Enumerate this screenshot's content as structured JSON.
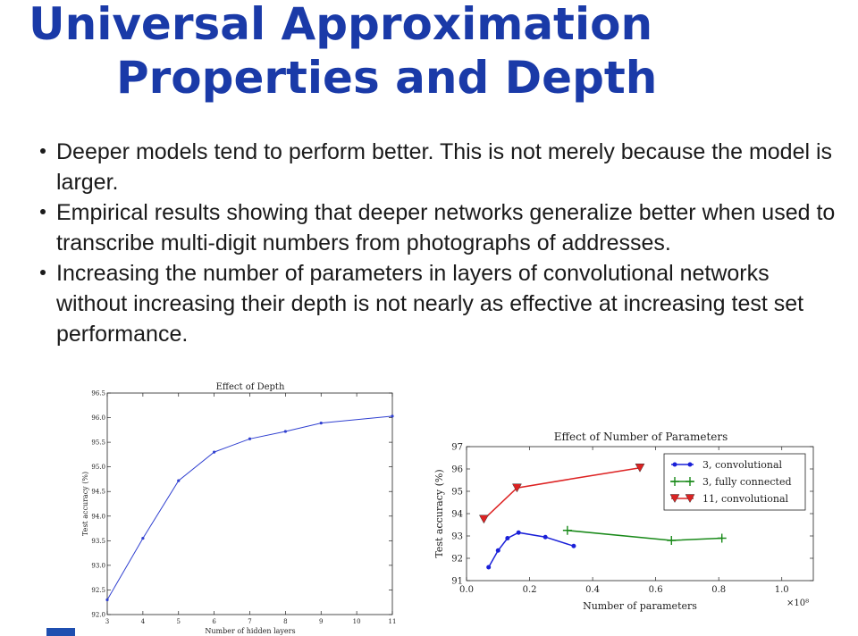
{
  "slide": {
    "title_line1": "Universal Approximation",
    "title_line2": "Properties and Depth",
    "bullets": [
      "Deeper models tend to perform better. This is not merely because the model is larger.",
      "Empirical results showing that deeper networks generalize better when used to transcribe multi-digit numbers from photographs of addresses.",
      "Increasing the number of parameters in layers of convolutional networks without increasing their depth is not nearly as effective at increasing test set performance."
    ]
  },
  "chart_data": [
    {
      "type": "line",
      "title": "Effect of Depth",
      "xlabel": "Number of hidden layers",
      "ylabel": "Test accuracy (%)",
      "xlim": [
        3,
        11
      ],
      "ylim": [
        92.0,
        96.5
      ],
      "xticks": [
        3,
        4,
        5,
        6,
        7,
        8,
        9,
        10,
        11
      ],
      "yticks": [
        "92.0",
        "92.5",
        "93.0",
        "93.5",
        "94.0",
        "94.5",
        "95.0",
        "95.5",
        "96.0",
        "96.5"
      ],
      "grid": false,
      "color": "#3040d0",
      "x": [
        3,
        4,
        5,
        6,
        7,
        8,
        9,
        11
      ],
      "y": [
        92.3,
        93.55,
        94.72,
        95.3,
        95.57,
        95.72,
        95.89,
        96.03
      ]
    },
    {
      "type": "line",
      "title": "Effect of Number of Parameters",
      "xlabel": "Number of parameters",
      "ylabel": "Test accuracy (%)",
      "x_multiplier_label": "×10⁸",
      "xlim": [
        0.0,
        1.1
      ],
      "ylim": [
        91,
        97
      ],
      "xticks": [
        "0.0",
        "0.2",
        "0.4",
        "0.6",
        "0.8",
        "1.0"
      ],
      "yticks": [
        "91",
        "92",
        "93",
        "94",
        "95",
        "96",
        "97"
      ],
      "grid": false,
      "legend": "top-right",
      "series": [
        {
          "name": "3, convolutional",
          "color": "#1a20d8",
          "marker": "dot",
          "x": [
            0.07,
            0.1,
            0.13,
            0.165,
            0.25,
            0.34
          ],
          "y": [
            91.6,
            92.35,
            92.9,
            93.15,
            92.95,
            92.55
          ],
          "marked": [
            0,
            1,
            2,
            3,
            4,
            5
          ]
        },
        {
          "name": "3, fully connected",
          "color": "#1a8a1a",
          "marker": "plus",
          "x": [
            0.32,
            0.65,
            0.81
          ],
          "y": [
            93.25,
            92.8,
            92.9
          ],
          "marked": [
            0,
            1,
            2
          ]
        },
        {
          "name": "11, convolutional",
          "color": "#dd2222",
          "marker": "triangle",
          "x": [
            0.055,
            0.16,
            0.33,
            0.55
          ],
          "y": [
            93.75,
            95.15,
            95.55,
            96.05
          ],
          "marked": [
            0,
            1,
            3
          ]
        }
      ]
    }
  ]
}
